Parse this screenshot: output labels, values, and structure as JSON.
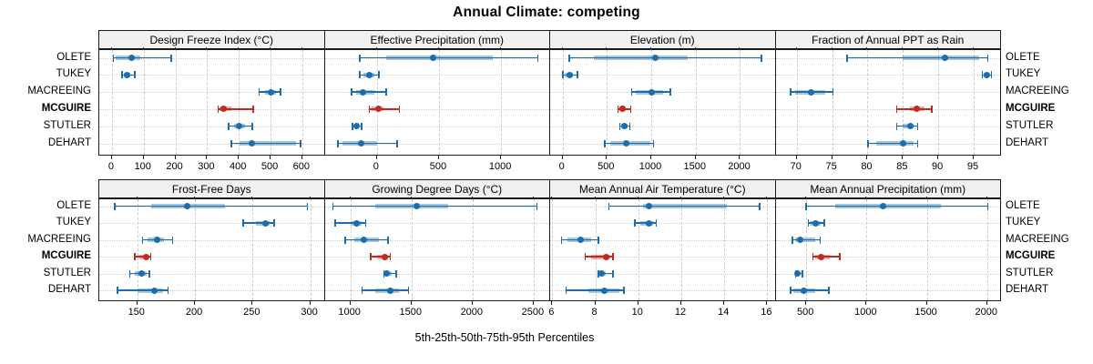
{
  "chart_data": {
    "type": "dotplot-interval",
    "title": "Annual Climate: competing",
    "caption": "5th-25th-50th-75th-95th Percentiles",
    "percentiles": [
      "5th",
      "25th",
      "50th",
      "75th",
      "95th"
    ],
    "stations": [
      "OLETE",
      "TUKEY",
      "MACREEING",
      "MCGUIRE",
      "STUTLER",
      "DEHART"
    ],
    "highlight_station": "MCGUIRE",
    "legend_position": "none",
    "grid": true,
    "layout": {
      "rows": 2,
      "cols": 4,
      "station_labels": "both-sides"
    },
    "colors": {
      "series": "#1b6eae",
      "highlight": "#bf2b21",
      "grid": "#cdcdcd",
      "strip_bg": "#f0f0f0",
      "border": "#1a1a1a"
    },
    "panels": [
      {
        "title": "Design Freeze Index (°C)",
        "xlim": [
          -40,
          665
        ],
        "ticks": [
          0,
          100,
          200,
          300,
          400,
          500,
          600
        ],
        "values": {
          "OLETE": [
            2,
            11,
            62,
            88,
            185
          ],
          "TUKEY": [
            29,
            37,
            48,
            58,
            69
          ],
          "MACREEING": [
            462,
            483,
            501,
            518,
            530
          ],
          "MCGUIRE": [
            332,
            338,
            352,
            375,
            443
          ],
          "STUTLER": [
            366,
            385,
            401,
            420,
            440
          ],
          "DEHART": [
            374,
            401,
            442,
            580,
            593
          ]
        }
      },
      {
        "title": "Effective Precipitation (mm)",
        "xlim": [
          -420,
          1380
        ],
        "ticks": [
          0,
          500,
          1000
        ],
        "values": {
          "OLETE": [
            -145,
            76,
            456,
            934,
            1289
          ],
          "TUKEY": [
            -142,
            -105,
            -64,
            -20,
            10
          ],
          "MACREEING": [
            -208,
            -165,
            -110,
            -20,
            71
          ],
          "MCGUIRE": [
            -68,
            -44,
            10,
            54,
            176
          ],
          "STUTLER": [
            -204,
            -185,
            -167,
            -148,
            -130
          ],
          "DEHART": [
            -319,
            -275,
            -130,
            5,
            159
          ]
        }
      },
      {
        "title": "Elevation (m)",
        "xlim": [
          -140,
          2380
        ],
        "ticks": [
          0,
          500,
          1000,
          1500,
          2000
        ],
        "values": {
          "OLETE": [
            68,
            350,
            1050,
            1410,
            2235
          ],
          "TUKEY": [
            -5,
            28,
            79,
            113,
            157
          ],
          "MACREEING": [
            770,
            830,
            1000,
            1135,
            1205
          ],
          "MCGUIRE": [
            615,
            635,
            675,
            717,
            760
          ],
          "STUTLER": [
            635,
            660,
            700,
            730,
            750
          ],
          "DEHART": [
            470,
            540,
            720,
            985,
            1017
          ]
        }
      },
      {
        "title": "Fraction of Annual PPT as Rain",
        "xlim": [
          67,
          98.6
        ],
        "ticks": [
          70,
          75,
          80,
          85,
          90,
          95
        ],
        "values": {
          "OLETE": [
            77,
            85,
            91,
            95.8,
            96.9
          ],
          "TUKEY": [
            96.1,
            96.4,
            96.9,
            97.2,
            97.4
          ],
          "MACREEING": [
            69,
            69.8,
            72,
            74,
            75
          ],
          "MCGUIRE": [
            84,
            86,
            87,
            88,
            89
          ],
          "STUTLER": [
            84,
            85,
            86,
            86.5,
            87
          ],
          "DEHART": [
            80,
            81.2,
            85,
            86.5,
            87
          ]
        }
      },
      {
        "title": "Frost-Free Days",
        "xlim": [
          117,
          311
        ],
        "ticks": [
          150,
          200,
          250,
          300
        ],
        "values": {
          "OLETE": [
            130,
            162,
            193,
            226,
            297
          ],
          "TUKEY": [
            241,
            253,
            261,
            265,
            268
          ],
          "MACREEING": [
            154,
            159,
            167,
            173,
            180
          ],
          "MCGUIRE": [
            147,
            152,
            158,
            160,
            161
          ],
          "STUTLER": [
            143,
            148,
            154,
            158,
            160
          ],
          "DEHART": [
            132,
            150,
            165,
            172,
            176
          ]
        }
      },
      {
        "title": "Growing Degree Days (°C)",
        "xlim": [
          790,
          2620
        ],
        "ticks": [
          1000,
          1500,
          2000,
          2500
        ],
        "values": {
          "OLETE": [
            850,
            1200,
            1540,
            1800,
            2520
          ],
          "TUKEY": [
            870,
            1000,
            1050,
            1090,
            1120
          ],
          "MACREEING": [
            950,
            1030,
            1110,
            1230,
            1300
          ],
          "MCGUIRE": [
            1160,
            1220,
            1280,
            1310,
            1320
          ],
          "STUTLER": [
            1270,
            1290,
            1300,
            1340,
            1370
          ],
          "DEHART": [
            1090,
            1200,
            1330,
            1400,
            1470
          ]
        }
      },
      {
        "title": "Mean Annual Air Temperature (°C)",
        "xlim": [
          5.9,
          16.3
        ],
        "ticks": [
          6,
          8,
          10,
          12,
          14,
          16
        ],
        "values": {
          "OLETE": [
            8.6,
            10.2,
            10.5,
            14.1,
            15.6
          ],
          "TUKEY": [
            9.8,
            10.1,
            10.5,
            10.7,
            10.8
          ],
          "MACREEING": [
            6.4,
            6.7,
            7.3,
            7.8,
            8.1
          ],
          "MCGUIRE": [
            7.5,
            7.8,
            8.5,
            8.7,
            8.8
          ],
          "STUTLER": [
            8.1,
            8.2,
            8.3,
            8.5,
            8.8
          ],
          "DEHART": [
            6.6,
            7.7,
            8.4,
            9.1,
            9.3
          ]
        }
      },
      {
        "title": "Mean Annual Precipitation (mm)",
        "xlim": [
          245,
          2100
        ],
        "ticks": [
          500,
          1000,
          1500,
          2000
        ],
        "values": {
          "OLETE": [
            490,
            740,
            1140,
            1620,
            2000
          ],
          "TUKEY": [
            510,
            530,
            580,
            620,
            645
          ],
          "MACREEING": [
            380,
            405,
            450,
            570,
            610
          ],
          "MCGUIRE": [
            550,
            570,
            620,
            695,
            770
          ],
          "STUTLER": [
            405,
            415,
            430,
            445,
            460
          ],
          "DEHART": [
            365,
            390,
            480,
            570,
            680
          ]
        }
      }
    ]
  }
}
